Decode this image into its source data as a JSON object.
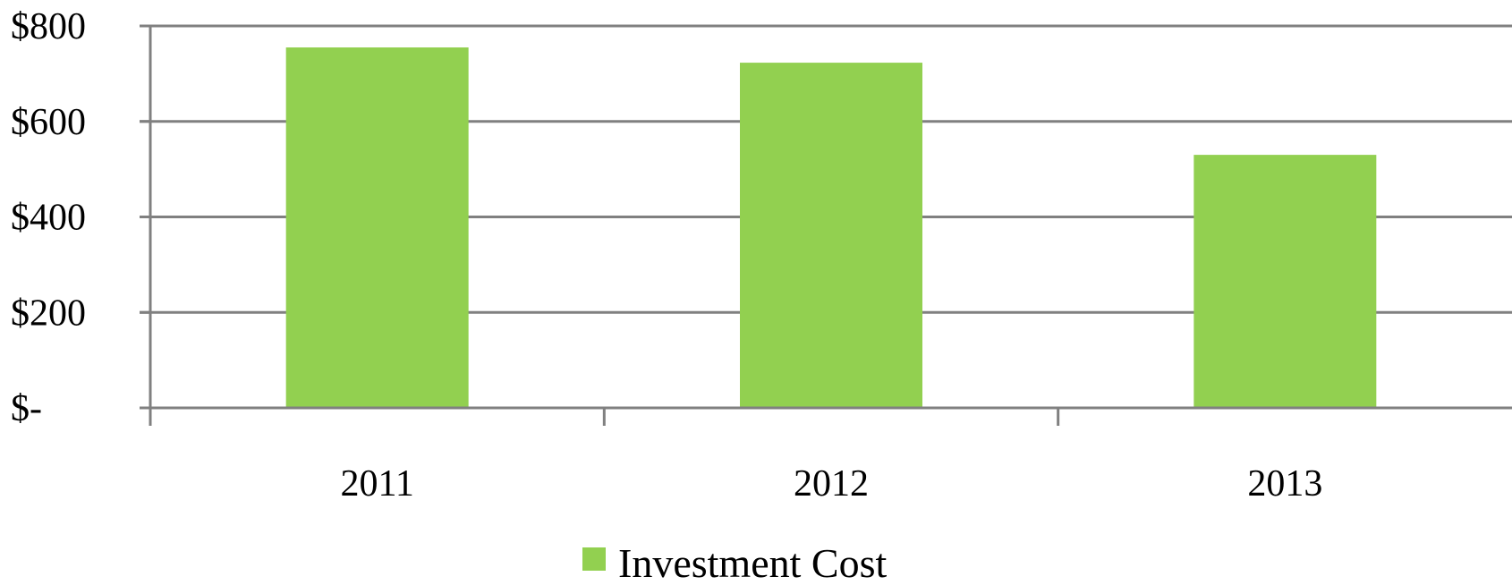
{
  "chart_data": {
    "type": "bar",
    "title": "",
    "xlabel": "",
    "ylabel": "",
    "categories": [
      "2011",
      "2012",
      "2013"
    ],
    "series": [
      {
        "name": "Investment Cost",
        "values": [
          755,
          723,
          530
        ],
        "color": "#92d050"
      }
    ],
    "ylim": [
      0,
      800
    ],
    "yticks": [
      {
        "value": 0,
        "label": "$-"
      },
      {
        "value": 200,
        "label": "$200"
      },
      {
        "value": 400,
        "label": "$400"
      },
      {
        "value": 600,
        "label": "$600"
      },
      {
        "value": 800,
        "label": "$800"
      }
    ],
    "grid": true,
    "gridline_color": "#808080",
    "legend_position": "bottom"
  }
}
